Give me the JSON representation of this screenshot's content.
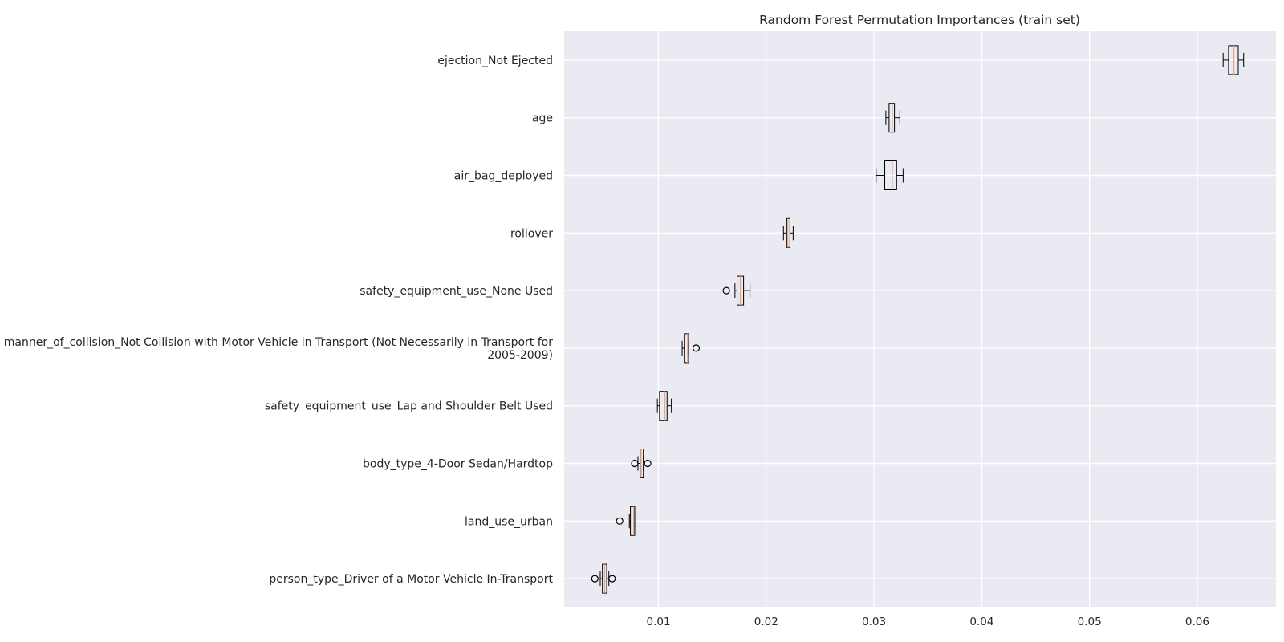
{
  "chart_data": {
    "type": "boxplot",
    "orientation": "horizontal",
    "title": "Random Forest Permutation Importances (train set)",
    "xlabel": "",
    "ylabel": "",
    "xlim": [
      0.00125,
      0.0673
    ],
    "xticks": [
      0.01,
      0.02,
      0.03,
      0.04,
      0.05,
      0.06
    ],
    "xtick_labels": [
      "0.01",
      "0.02",
      "0.03",
      "0.04",
      "0.05",
      "0.06"
    ],
    "grid": true,
    "background": "#eaeaf2",
    "box_edge_color": "#000000",
    "median_color": "#e7a57f",
    "features": [
      {
        "label": [
          "ejection_Not Ejected"
        ],
        "whisker_low": 0.0624,
        "q1": 0.0629,
        "median": 0.0634,
        "q3": 0.0638,
        "whisker_high": 0.0643,
        "outliers": []
      },
      {
        "label": [
          "age"
        ],
        "whisker_low": 0.0311,
        "q1": 0.0314,
        "median": 0.0317,
        "q3": 0.0319,
        "whisker_high": 0.0324,
        "outliers": []
      },
      {
        "label": [
          "air_bag_deployed"
        ],
        "whisker_low": 0.0302,
        "q1": 0.031,
        "median": 0.0317,
        "q3": 0.0321,
        "whisker_high": 0.0327,
        "outliers": []
      },
      {
        "label": [
          "rollover"
        ],
        "whisker_low": 0.0216,
        "q1": 0.0219,
        "median": 0.022,
        "q3": 0.0222,
        "whisker_high": 0.0225,
        "outliers": []
      },
      {
        "label": [
          "safety_equipment_use_None Used"
        ],
        "whisker_low": 0.0171,
        "q1": 0.0173,
        "median": 0.0176,
        "q3": 0.0179,
        "whisker_high": 0.0185,
        "outliers": [
          0.0163
        ]
      },
      {
        "label": [
          "manner_of_collision_Not Collision with Motor Vehicle in Transport (Not Necessarily in Transport for",
          "2005-2009)"
        ],
        "whisker_low": 0.0122,
        "q1": 0.0124,
        "median": 0.0127,
        "q3": 0.0128,
        "whisker_high": 0.0128,
        "outliers": [
          0.0135
        ]
      },
      {
        "label": [
          "safety_equipment_use_Lap and Shoulder Belt Used"
        ],
        "whisker_low": 0.0099,
        "q1": 0.0101,
        "median": 0.0106,
        "q3": 0.0108,
        "whisker_high": 0.0112,
        "outliers": []
      },
      {
        "label": [
          "body_type_4-Door Sedan/Hardtop"
        ],
        "whisker_low": 0.0081,
        "q1": 0.0083,
        "median": 0.0084,
        "q3": 0.0086,
        "whisker_high": 0.0086,
        "outliers": [
          0.0078,
          0.009
        ]
      },
      {
        "label": [
          "land_use_urban"
        ],
        "whisker_low": 0.0073,
        "q1": 0.0074,
        "median": 0.0077,
        "q3": 0.0078,
        "whisker_high": 0.0078,
        "outliers": [
          0.0064
        ]
      },
      {
        "label": [
          "person_type_Driver of a Motor Vehicle In-Transport"
        ],
        "whisker_low": 0.0046,
        "q1": 0.0048,
        "median": 0.005,
        "q3": 0.0052,
        "whisker_high": 0.0054,
        "outliers": [
          0.0041,
          0.0057
        ]
      }
    ]
  }
}
